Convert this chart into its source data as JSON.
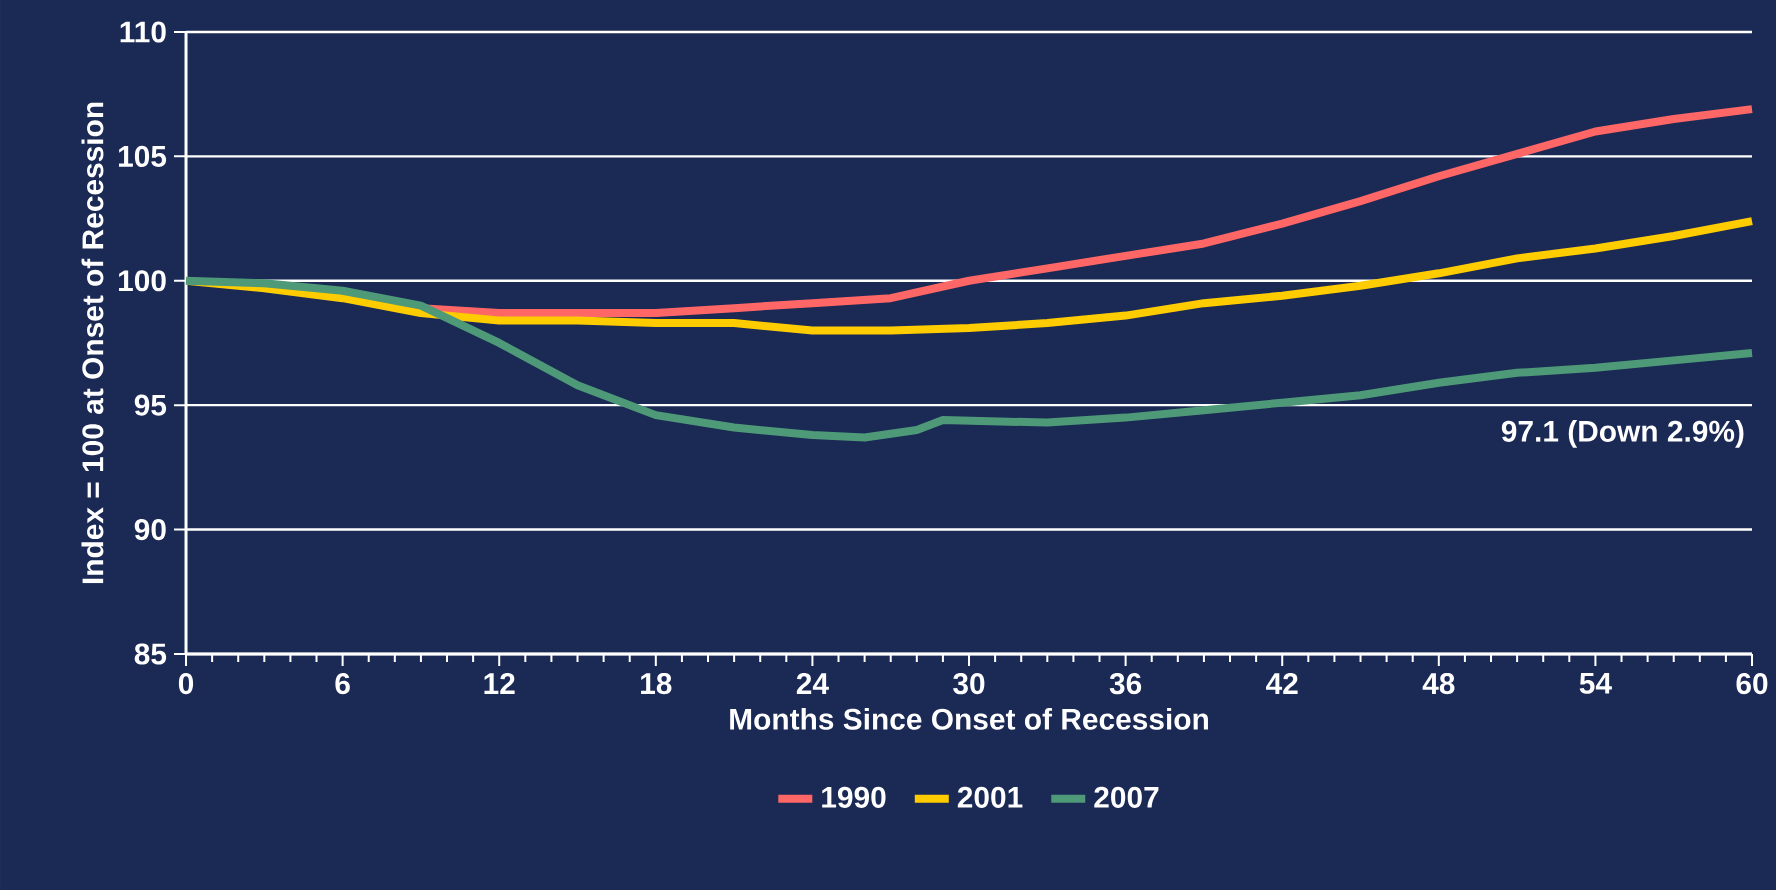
{
  "chart_data": {
    "type": "line",
    "xlabel": "Months Since Onset of Recession",
    "ylabel": "Index = 100 at Onset of Recession",
    "xlim": [
      0,
      60
    ],
    "xticks": [
      0,
      6,
      12,
      18,
      24,
      30,
      36,
      42,
      48,
      54,
      60
    ],
    "ylim": [
      85,
      110
    ],
    "yticks": [
      85,
      90,
      95,
      100,
      105,
      110
    ],
    "grid": "y",
    "legend": "bottom",
    "marker": "none",
    "line_style": "solid",
    "annotations": [
      {
        "text": "97.1 (Down 2.9%)",
        "x": 60,
        "y": 97.1
      }
    ],
    "series": [
      {
        "name": "1990",
        "color": "#ff6666",
        "x": [
          6,
          9,
          12,
          15,
          18,
          21,
          24,
          27,
          30,
          33,
          36,
          39,
          42,
          45,
          48,
          51,
          54,
          57,
          60
        ],
        "values": [
          99.4,
          98.9,
          98.7,
          98.7,
          98.7,
          98.9,
          99.1,
          99.3,
          100.0,
          100.5,
          101.0,
          101.5,
          102.3,
          103.2,
          104.2,
          105.1,
          106.0,
          106.5,
          106.9
        ]
      },
      {
        "name": "2001",
        "color": "#ffcc00",
        "x": [
          0,
          3,
          6,
          9,
          12,
          15,
          18,
          21,
          24,
          27,
          30,
          33,
          36,
          39,
          42,
          45,
          48,
          51,
          54,
          57,
          60
        ],
        "values": [
          100,
          99.7,
          99.3,
          98.7,
          98.4,
          98.4,
          98.3,
          98.3,
          98.0,
          98.0,
          98.1,
          98.3,
          98.6,
          99.1,
          99.4,
          99.8,
          100.3,
          100.9,
          101.3,
          101.8,
          102.4
        ]
      },
      {
        "name": "2007",
        "color": "#4e9a78",
        "x": [
          0,
          3,
          6,
          9,
          12,
          15,
          18,
          21,
          24,
          26,
          28,
          29,
          33,
          36,
          39,
          42,
          45,
          48,
          51,
          54,
          57,
          60
        ],
        "values": [
          100,
          99.9,
          99.6,
          99.0,
          97.5,
          95.8,
          94.6,
          94.1,
          93.8,
          93.7,
          94.0,
          94.4,
          94.3,
          94.5,
          94.8,
          95.1,
          95.4,
          95.9,
          96.3,
          96.5,
          96.8,
          97.1
        ]
      }
    ]
  }
}
